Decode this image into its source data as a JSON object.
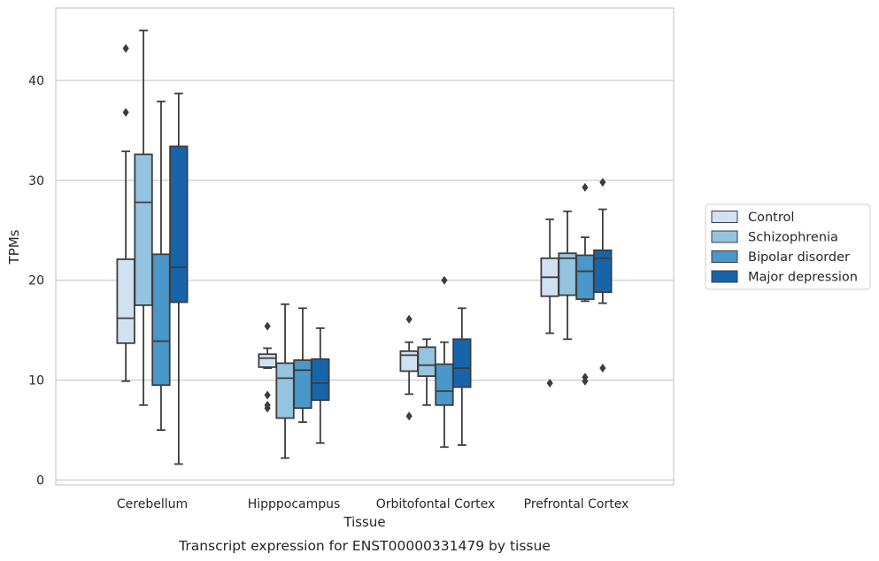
{
  "chart_data": {
    "type": "box",
    "caption": "Transcript expression for ENST00000331479 by tissue",
    "xlabel": "Tissue",
    "ylabel": "TPMs",
    "ylim": [
      -0.5,
      47.5
    ],
    "yticks": [
      0,
      10,
      20,
      30,
      40
    ],
    "categories": [
      "Cerebellum",
      "Hipppocampus",
      "Orbitofontal Cortex",
      "Prefrontal Cortex"
    ],
    "grid": "horizontal",
    "legend_position": "right",
    "series": [
      {
        "name": "Control",
        "color": "#d0e1f2",
        "boxes": [
          {
            "whislo": 9.9,
            "q1": 13.7,
            "med": 16.2,
            "q3": 22.1,
            "whishi": 32.9,
            "fliers": [
              36.8,
              43.2
            ]
          },
          {
            "whislo": 11.2,
            "q1": 11.3,
            "med": 12.2,
            "q3": 12.6,
            "whishi": 13.2,
            "fliers": [
              15.4,
              8.5,
              7.5,
              7.2
            ]
          },
          {
            "whislo": 8.6,
            "q1": 10.9,
            "med": 12.5,
            "q3": 12.9,
            "whishi": 13.8,
            "fliers": [
              16.1,
              6.4
            ]
          },
          {
            "whislo": 14.7,
            "q1": 18.4,
            "med": 20.3,
            "q3": 22.2,
            "whishi": 26.1,
            "fliers": [
              9.7
            ]
          }
        ]
      },
      {
        "name": "Schizophrenia",
        "color": "#94c4df",
        "boxes": [
          {
            "whislo": 7.5,
            "q1": 17.5,
            "med": 27.8,
            "q3": 32.6,
            "whishi": 45.0,
            "fliers": []
          },
          {
            "whislo": 2.2,
            "q1": 6.2,
            "med": 10.2,
            "q3": 11.7,
            "whishi": 17.6,
            "fliers": []
          },
          {
            "whislo": 7.5,
            "q1": 10.4,
            "med": 11.5,
            "q3": 13.3,
            "whishi": 14.1,
            "fliers": []
          },
          {
            "whislo": 14.1,
            "q1": 18.5,
            "med": 22.2,
            "q3": 22.7,
            "whishi": 26.9,
            "fliers": []
          }
        ]
      },
      {
        "name": "Bipolar disorder",
        "color": "#4a98c9",
        "boxes": [
          {
            "whislo": 5.0,
            "q1": 9.5,
            "med": 13.9,
            "q3": 22.6,
            "whishi": 37.9,
            "fliers": []
          },
          {
            "whislo": 5.8,
            "q1": 7.2,
            "med": 11.0,
            "q3": 12.0,
            "whishi": 17.2,
            "fliers": []
          },
          {
            "whislo": 3.3,
            "q1": 7.5,
            "med": 8.9,
            "q3": 11.6,
            "whishi": 13.8,
            "fliers": [
              20.0
            ]
          },
          {
            "whislo": 17.9,
            "q1": 18.1,
            "med": 20.9,
            "q3": 22.5,
            "whishi": 24.3,
            "fliers": [
              29.3,
              10.3,
              9.9
            ]
          }
        ]
      },
      {
        "name": "Major depression",
        "color": "#1764ab",
        "boxes": [
          {
            "whislo": 1.6,
            "q1": 17.8,
            "med": 21.3,
            "q3": 33.4,
            "whishi": 38.7,
            "fliers": []
          },
          {
            "whislo": 3.7,
            "q1": 8.0,
            "med": 9.7,
            "q3": 12.1,
            "whishi": 15.2,
            "fliers": []
          },
          {
            "whislo": 3.5,
            "q1": 9.3,
            "med": 11.2,
            "q3": 14.1,
            "whishi": 17.2,
            "fliers": []
          },
          {
            "whislo": 17.7,
            "q1": 18.8,
            "med": 22.2,
            "q3": 23.0,
            "whishi": 27.1,
            "fliers": [
              29.8,
              11.2
            ]
          }
        ]
      }
    ]
  }
}
